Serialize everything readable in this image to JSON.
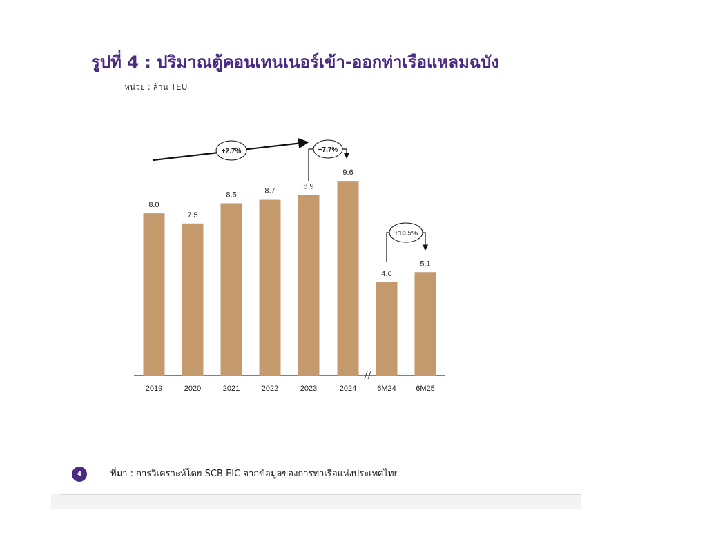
{
  "title": "รูปที่ 4 : ปริมาณตู้คอนเทนเนอร์เข้า-ออกท่าเรือแหลมฉบัง",
  "unit": "หน่วย : ล้าน TEU",
  "source": "ที่มา : การวิเคราะห์โดย SCB EIC จากข้อมูลของการท่าเรือแห่งประเทศไทย",
  "page_number": "4",
  "colors": {
    "bar": "#c49a6c",
    "title": "#4b2a84",
    "badge": "#4b2a84"
  },
  "chart_data": {
    "type": "bar",
    "categories": [
      "2019",
      "2020",
      "2021",
      "2022",
      "2023",
      "2024",
      "6M24",
      "6M25"
    ],
    "values": [
      8.0,
      7.5,
      8.5,
      8.7,
      8.9,
      9.6,
      4.6,
      5.1
    ],
    "data_labels": [
      "8.0",
      "7.5",
      "8.5",
      "8.7",
      "8.9",
      "9.6",
      "4.6",
      "5.1"
    ],
    "axis_break_between": [
      "2024",
      "6M24"
    ],
    "annotations": [
      {
        "text": "+2.7%",
        "from": "2019",
        "to": "2023"
      },
      {
        "text": "+7.7%",
        "from": "2023",
        "to": "2024"
      },
      {
        "text": "+10.5%",
        "from": "6M24",
        "to": "6M25"
      }
    ],
    "ylim": [
      0,
      10
    ],
    "grid": false,
    "xlabel": "",
    "ylabel": ""
  }
}
